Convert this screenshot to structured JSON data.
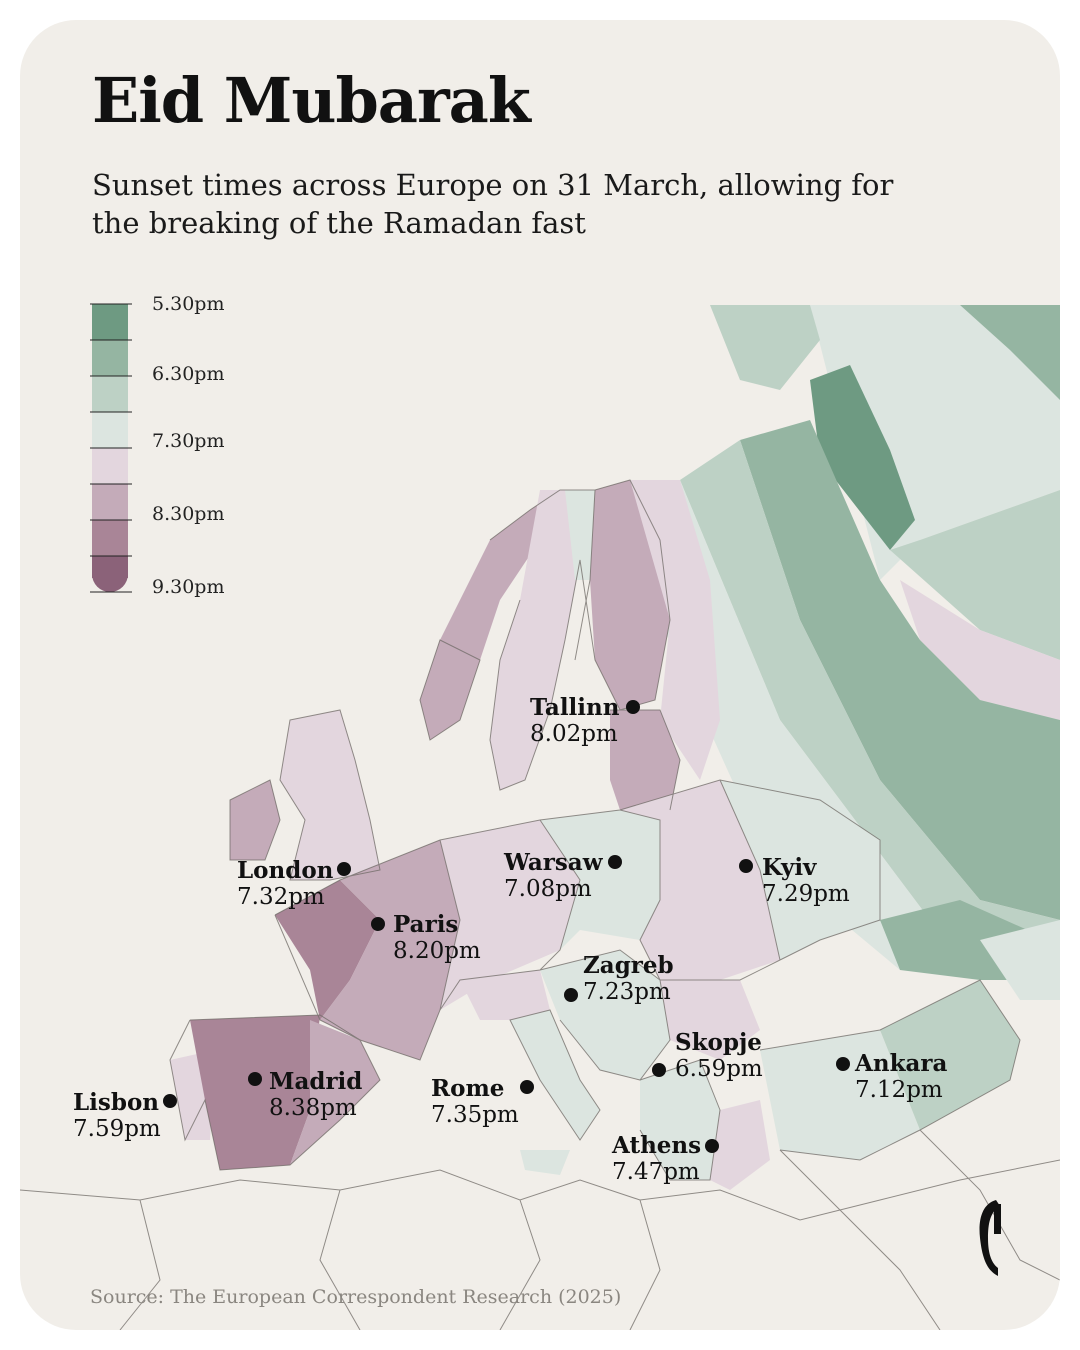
{
  "header": {
    "title": "Eid Mubarak",
    "subtitle": "Sunset times across Europe on 31 March, allowing for the breaking of the Ramadan fast"
  },
  "legend": {
    "labels": [
      "5.30pm",
      "6.30pm",
      "7.30pm",
      "8.30pm",
      "9.30pm"
    ],
    "colors": [
      "#6e9a82",
      "#95b5a2",
      "#bdd1c5",
      "#dce5e0",
      "#e3d6de",
      "#c4abb9",
      "#a98597",
      "#8b6279"
    ]
  },
  "cities": [
    {
      "name": "Tallinn",
      "time": "8.02pm"
    },
    {
      "name": "London",
      "time": "7.32pm"
    },
    {
      "name": "Warsaw",
      "time": "7.08pm"
    },
    {
      "name": "Kyiv",
      "time": "7.29pm"
    },
    {
      "name": "Paris",
      "time": "8.20pm"
    },
    {
      "name": "Zagreb",
      "time": "7.23pm"
    },
    {
      "name": "Skopje",
      "time": "6.59pm"
    },
    {
      "name": "Ankara",
      "time": "7.12pm"
    },
    {
      "name": "Lisbon",
      "time": "7.59pm"
    },
    {
      "name": "Madrid",
      "time": "8.38pm"
    },
    {
      "name": "Rome",
      "time": "7.35pm"
    },
    {
      "name": "Athens",
      "time": "7.47pm"
    }
  ],
  "source": "Source: The European Correspondent Research (2025)",
  "colors": {
    "background": "#f1eee9",
    "outline": "#6f6a66"
  },
  "logo": {
    "icon": "correspondent-logo-icon"
  }
}
